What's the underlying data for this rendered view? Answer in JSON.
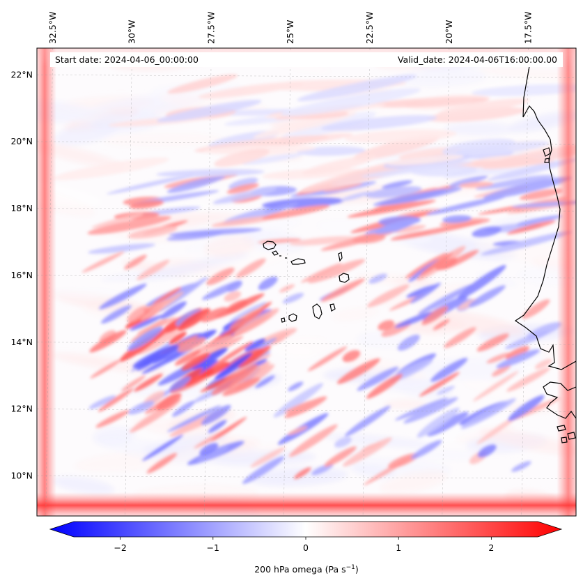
{
  "map": {
    "start_date_text": "Start date: 2024-04-06_00:00:00",
    "valid_date_text": "Valid_date: 2024-04-06T16:00:00.00",
    "extent": {
      "lon_min": -33.0,
      "lon_max": -16.0,
      "lat_min": 8.8,
      "lat_max": 22.8
    },
    "lon_ticks": [
      {
        "value": -32.5,
        "label": "32.5°W"
      },
      {
        "value": -30.0,
        "label": "30°W"
      },
      {
        "value": -27.5,
        "label": "27.5°W"
      },
      {
        "value": -25.0,
        "label": "25°W"
      },
      {
        "value": -22.5,
        "label": "22.5°W"
      },
      {
        "value": -20.0,
        "label": "20°W"
      },
      {
        "value": -17.5,
        "label": "17.5°W"
      }
    ],
    "lat_ticks": [
      {
        "value": 22,
        "label": "22°N"
      },
      {
        "value": 20,
        "label": "20°N"
      },
      {
        "value": 18,
        "label": "18°N"
      },
      {
        "value": 16,
        "label": "16°N"
      },
      {
        "value": 14,
        "label": "14°N"
      },
      {
        "value": 12,
        "label": "12°N"
      },
      {
        "value": 10,
        "label": "10°N"
      }
    ],
    "field_colormap": "bwr"
  },
  "colorbar": {
    "label": "200 hPa omega (Pa s",
    "label_exponent": "−1",
    "label_close": ")",
    "range": [
      -2.75,
      2.75
    ],
    "ticks": [
      {
        "value": -2,
        "label": "−2"
      },
      {
        "value": -1,
        "label": "−1"
      },
      {
        "value": 0,
        "label": "0"
      },
      {
        "value": 1,
        "label": "1"
      },
      {
        "value": 2,
        "label": "2"
      }
    ],
    "colors": {
      "low": "#0000ff",
      "mid": "#ffffff",
      "high": "#ff0000"
    }
  },
  "chart_data": {
    "type": "heatmap",
    "title": "",
    "variable": "200 hPa omega",
    "units": "Pa s^-1",
    "xlabel": "",
    "ylabel": "",
    "xlim": [
      -33.0,
      -16.0
    ],
    "ylim": [
      8.8,
      22.8
    ],
    "clim": [
      -2.75,
      2.75
    ]
  }
}
